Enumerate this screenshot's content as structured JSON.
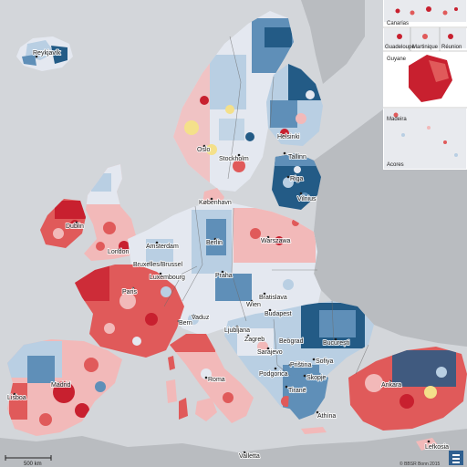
{
  "colors": {
    "sea": "#d3d6da",
    "non_eu_land": "#b9bcc0",
    "inset_frame": "#ffffff",
    "dark_red": "#c8202f",
    "red": "#e05a5a",
    "light_red": "#f2b9b9",
    "pale": "#e4e8f0",
    "light_blue": "#b9cfe3",
    "blue": "#5f8fb8",
    "dark_blue": "#235b86",
    "yellow": "#f4e08a"
  },
  "cities": [
    {
      "name": "Reykjavík"
    },
    {
      "name": "Oslo"
    },
    {
      "name": "Stockholm"
    },
    {
      "name": "Helsinki"
    },
    {
      "name": "Tallinn"
    },
    {
      "name": "Riga"
    },
    {
      "name": "Vilnius"
    },
    {
      "name": "København"
    },
    {
      "name": "Dublin"
    },
    {
      "name": "London"
    },
    {
      "name": "Amsterdam"
    },
    {
      "name": "Berlin"
    },
    {
      "name": "Warszawa"
    },
    {
      "name": "Bruxelles/Brussel"
    },
    {
      "name": "Luxembourg"
    },
    {
      "name": "Praha"
    },
    {
      "name": "Paris"
    },
    {
      "name": "Bratislava"
    },
    {
      "name": "Wien"
    },
    {
      "name": "Budapest"
    },
    {
      "name": "Bern"
    },
    {
      "name": "Vaduz"
    },
    {
      "name": "Ljubljana"
    },
    {
      "name": "Zagreb"
    },
    {
      "name": "Beograd"
    },
    {
      "name": "București"
    },
    {
      "name": "Sarajevo"
    },
    {
      "name": "Podgorica"
    },
    {
      "name": "Priština"
    },
    {
      "name": "Sofiya"
    },
    {
      "name": "Skopje"
    },
    {
      "name": "Tiranë"
    },
    {
      "name": "Roma"
    },
    {
      "name": "Madrid"
    },
    {
      "name": "Lisboa"
    },
    {
      "name": "Athína"
    },
    {
      "name": "Ankara"
    },
    {
      "name": "Valletta"
    },
    {
      "name": "Lefkosia"
    }
  ],
  "insets": {
    "canarias": "Canarias",
    "guadeloupe": "Guadeloupe",
    "martinique": "Martinique",
    "reunion": "Réunion",
    "guyane": "Guyane",
    "madeira": "Madeira",
    "acores": "Acores"
  },
  "scale_bar": {
    "label": "500 km"
  },
  "copyright": "© BBSR Bonn 2015"
}
